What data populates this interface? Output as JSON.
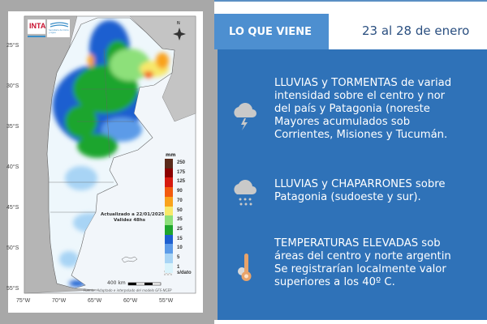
{
  "map": {
    "logo": "INTA",
    "logo_partner": "Secretaría de Clima y Agua",
    "compass": "N",
    "lat_ticks": [
      "25°S",
      "30°S",
      "35°S",
      "40°S",
      "45°S",
      "50°S",
      "55°S"
    ],
    "lon_ticks": [
      "75°W",
      "70°W",
      "65°W",
      "60°W",
      "55°W"
    ],
    "legend_unit": "mm",
    "legend": [
      {
        "label": "250",
        "color": "#5a2a1a"
      },
      {
        "label": "175",
        "color": "#8b0000"
      },
      {
        "label": "125",
        "color": "#d61a10"
      },
      {
        "label": "90",
        "color": "#f25a0f"
      },
      {
        "label": "70",
        "color": "#f9a21c"
      },
      {
        "label": "50",
        "color": "#f7e86a"
      },
      {
        "label": "35",
        "color": "#8de07a"
      },
      {
        "label": "25",
        "color": "#1fa52e"
      },
      {
        "label": "15",
        "color": "#1d5fd0"
      },
      {
        "label": "10",
        "color": "#5c9be8"
      },
      {
        "label": "5",
        "color": "#a8d4f5"
      },
      {
        "label": "1",
        "color": "#d9f3fb"
      }
    ],
    "no_data_label": "s/dato",
    "updated": "Actualizado a 22/01/2025",
    "validity": "Validez 48hs",
    "scale": "400 km",
    "source": "Fuente: Adaptado e interpolado del modelo GFS-NCEP"
  },
  "header": {
    "tab": "LO QUE VIENE",
    "date": "23 al 28 de enero"
  },
  "items": [
    {
      "icon": "storm-cloud-icon",
      "lines": [
        "LLUVIAS y TORMENTAS de variad",
        "intensidad sobre el centro y nor",
        "del país y Patagonia (noreste",
        "Mayores acumulados sob",
        "Corrientes, Misiones y Tucumán."
      ]
    },
    {
      "icon": "rain-cloud-icon",
      "lines": [
        "LLUVIAS y CHAPARRONES sobre",
        "Patagonia (sudoeste y sur)."
      ]
    },
    {
      "icon": "thermometer-sun-icon",
      "lines": [
        "TEMPERATURAS ELEVADAS sob",
        "áreas del centro y norte argentin",
        "Se registrarían localmente valor",
        "superiores a los 40º C."
      ]
    }
  ]
}
